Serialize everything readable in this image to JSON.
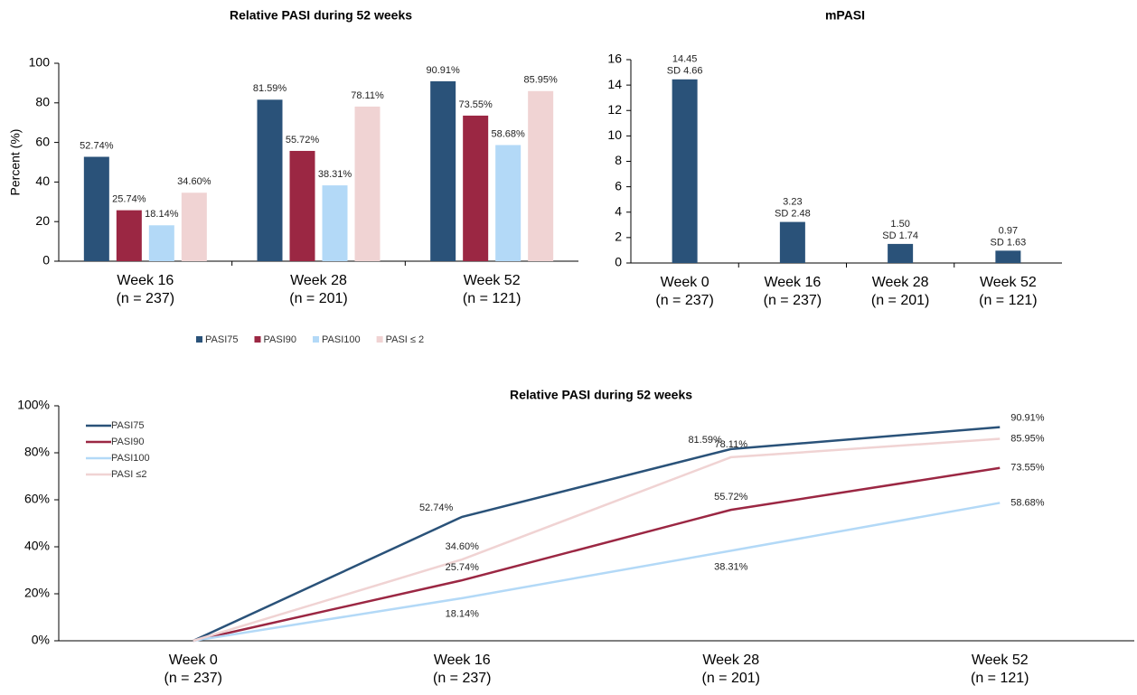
{
  "chart_data": [
    {
      "type": "bar",
      "title": "Relative PASI during 52 weeks",
      "y_label": "Percent (%)",
      "categories": [
        [
          "Week 16",
          "(n =  237)"
        ],
        [
          "Week 28",
          "(n = 201)"
        ],
        [
          "Week 52",
          "(n = 121)"
        ]
      ],
      "series": [
        {
          "name": "PASI75",
          "color": "#2a5279",
          "values": [
            52.74,
            81.59,
            90.91
          ],
          "value_labels": [
            "52.74%",
            "81.59%",
            "90.91%"
          ]
        },
        {
          "name": "PASI90",
          "color": "#9b2743",
          "values": [
            25.74,
            55.72,
            73.55
          ],
          "value_labels": [
            "25.74%",
            "55.72%",
            "73.55%"
          ]
        },
        {
          "name": "PASI100",
          "color": "#b3d9f7",
          "values": [
            18.14,
            38.31,
            58.68
          ],
          "value_labels": [
            "18.14%",
            "38.31%",
            "58.68%"
          ]
        },
        {
          "name": "PASI ≤ 2",
          "color": "#f0d3d3",
          "values": [
            34.6,
            78.11,
            85.95
          ],
          "value_labels": [
            "34.60%",
            "78.11%",
            "85.95%"
          ]
        }
      ],
      "ylim": [
        0,
        100
      ],
      "yticks": [
        0,
        20,
        40,
        60,
        80,
        100
      ],
      "grid": false,
      "legend": "bottom"
    },
    {
      "type": "bar",
      "title": "mPASI",
      "categories": [
        [
          "Week 0",
          "(n =  237)"
        ],
        [
          "Week 16",
          "(n =  237)"
        ],
        [
          "Week 28",
          "(n = 201)"
        ],
        [
          "Week 52",
          "(n = 121)"
        ]
      ],
      "series": [
        {
          "color": "#2a5279",
          "values": [
            14.45,
            3.23,
            1.5,
            0.97
          ],
          "value_labels": [
            "14.45",
            "3.23",
            "1.50",
            "0.97"
          ],
          "annotations": [
            "SD 4.66",
            "SD 2.48",
            "SD 1.74",
            "SD 1.63"
          ]
        }
      ],
      "ylim": [
        0,
        16
      ],
      "yticks": [
        0,
        2,
        4,
        6,
        8,
        10,
        12,
        14,
        16
      ],
      "grid": false
    },
    {
      "type": "line",
      "title": "Relative PASI during 52 weeks",
      "categories": [
        [
          "Week 0",
          "(n =  237)"
        ],
        [
          "Week 16",
          "(n =  237)"
        ],
        [
          "Week 28",
          "(n = 201)"
        ],
        [
          "Week 52",
          "(n = 121)"
        ]
      ],
      "series": [
        {
          "name": "PASI75",
          "color": "#2a5279",
          "values": [
            0,
            52.74,
            81.59,
            90.91
          ],
          "value_labels": [
            null,
            "52.74%",
            "81.59%",
            "90.91%"
          ]
        },
        {
          "name": "PASI90",
          "color": "#9b2743",
          "values": [
            0,
            25.74,
            55.72,
            73.55
          ],
          "value_labels": [
            null,
            "25.74%",
            "55.72%",
            "73.55%"
          ]
        },
        {
          "name": "PASI100",
          "color": "#b3d9f7",
          "values": [
            0,
            18.14,
            38.31,
            58.68
          ],
          "value_labels": [
            null,
            "18.14%",
            "38.31%",
            "58.68%"
          ]
        },
        {
          "name": "PASI ≤2",
          "color": "#f0d3d3",
          "values": [
            0,
            34.6,
            78.11,
            85.95
          ],
          "value_labels": [
            null,
            "34.60%",
            "78.11%",
            "85.95%"
          ]
        }
      ],
      "ylim": [
        0,
        100
      ],
      "yticks": [
        {
          "value": 0,
          "label": "0%"
        },
        {
          "value": 20,
          "label": "20%"
        },
        {
          "value": 40,
          "label": "40%"
        },
        {
          "value": 60,
          "label": "60%"
        },
        {
          "value": 80,
          "label": "80%"
        },
        {
          "value": 100,
          "label": "100%"
        }
      ],
      "grid": false,
      "legend": "upper left"
    }
  ]
}
